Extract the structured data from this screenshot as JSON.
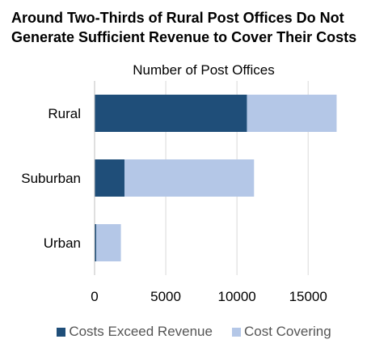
{
  "chart_data": {
    "type": "bar",
    "orientation": "horizontal",
    "stacked": true,
    "title": "Around Two-Thirds of Rural Post Offices Do Not\nGenerate Sufficient Revenue to Cover Their Costs",
    "subtitle": "Number of Post Offices",
    "categories": [
      "Rural",
      "Suburban",
      "Urban"
    ],
    "series": [
      {
        "name": "Costs Exceed Revenue",
        "color": "#1f4e79",
        "values": [
          10700,
          2100,
          120
        ]
      },
      {
        "name": "Cost Covering",
        "color": "#b4c7e7",
        "values": [
          6300,
          9100,
          1730
        ]
      }
    ],
    "xlim": [
      0,
      17600
    ],
    "xticks": [
      0,
      5000,
      10000,
      15000
    ],
    "xtick_labels": [
      "0",
      "5000",
      "10000",
      "15000"
    ],
    "grid": true,
    "legend_position": "bottom"
  }
}
